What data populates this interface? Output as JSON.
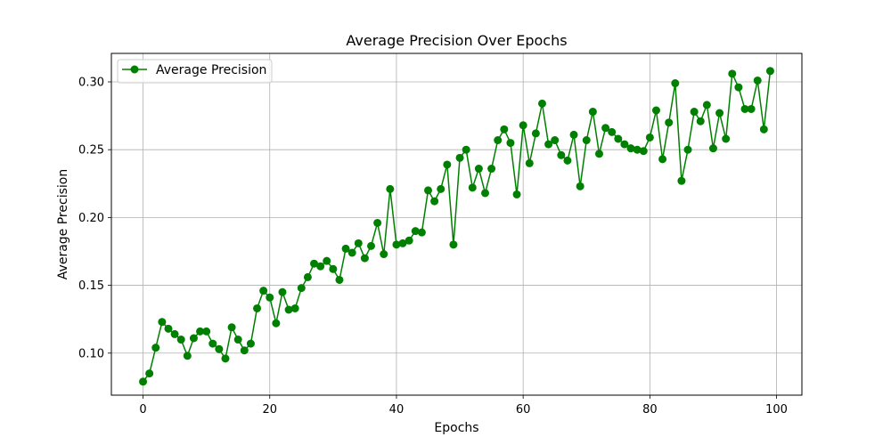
{
  "chart_data": {
    "type": "line",
    "title": "Average Precision Over Epochs",
    "xlabel": "Epochs",
    "ylabel": "Average Precision",
    "xlim": [
      -5,
      104
    ],
    "ylim": [
      0.069,
      0.321
    ],
    "xticks": [
      0,
      20,
      40,
      60,
      80,
      100
    ],
    "xtick_labels": [
      "0",
      "20",
      "40",
      "60",
      "80",
      "100"
    ],
    "yticks": [
      0.1,
      0.15,
      0.2,
      0.25,
      0.3
    ],
    "ytick_labels": [
      "0.10",
      "0.15",
      "0.20",
      "0.25",
      "0.30"
    ],
    "grid": true,
    "legend_position": "top-left",
    "colors": {
      "series": "#008000",
      "grid": "#b0b0b0",
      "axis": "#000000"
    },
    "series": [
      {
        "name": "Average Precision",
        "marker": "circle",
        "x": [
          0,
          1,
          2,
          3,
          4,
          5,
          6,
          7,
          8,
          9,
          10,
          11,
          12,
          13,
          14,
          15,
          16,
          17,
          18,
          19,
          20,
          21,
          22,
          23,
          24,
          25,
          26,
          27,
          28,
          29,
          30,
          31,
          32,
          33,
          34,
          35,
          36,
          37,
          38,
          39,
          40,
          41,
          42,
          43,
          44,
          45,
          46,
          47,
          48,
          49,
          50,
          51,
          52,
          53,
          54,
          55,
          56,
          57,
          58,
          59,
          60,
          61,
          62,
          63,
          64,
          65,
          66,
          67,
          68,
          69,
          70,
          71,
          72,
          73,
          74,
          75,
          76,
          77,
          78,
          79,
          80,
          81,
          82,
          83,
          84,
          85,
          86,
          87,
          88,
          89,
          90,
          91,
          92,
          93,
          94,
          95,
          96,
          97,
          98,
          99
        ],
        "values": [
          0.079,
          0.085,
          0.104,
          0.123,
          0.118,
          0.114,
          0.11,
          0.098,
          0.111,
          0.116,
          0.116,
          0.107,
          0.103,
          0.096,
          0.119,
          0.11,
          0.102,
          0.107,
          0.133,
          0.146,
          0.141,
          0.122,
          0.145,
          0.132,
          0.133,
          0.148,
          0.156,
          0.166,
          0.164,
          0.168,
          0.162,
          0.154,
          0.177,
          0.174,
          0.181,
          0.17,
          0.179,
          0.196,
          0.173,
          0.221,
          0.18,
          0.181,
          0.183,
          0.19,
          0.189,
          0.22,
          0.212,
          0.221,
          0.239,
          0.18,
          0.244,
          0.25,
          0.222,
          0.236,
          0.218,
          0.236,
          0.257,
          0.265,
          0.255,
          0.217,
          0.268,
          0.24,
          0.262,
          0.284,
          0.254,
          0.257,
          0.246,
          0.242,
          0.261,
          0.223,
          0.257,
          0.278,
          0.247,
          0.266,
          0.263,
          0.258,
          0.254,
          0.251,
          0.25,
          0.249,
          0.259,
          0.279,
          0.243,
          0.27,
          0.299,
          0.227,
          0.25,
          0.278,
          0.271,
          0.283,
          0.251,
          0.277,
          0.258,
          0.306,
          0.296,
          0.28,
          0.28,
          0.301,
          0.265,
          0.308
        ]
      }
    ]
  }
}
